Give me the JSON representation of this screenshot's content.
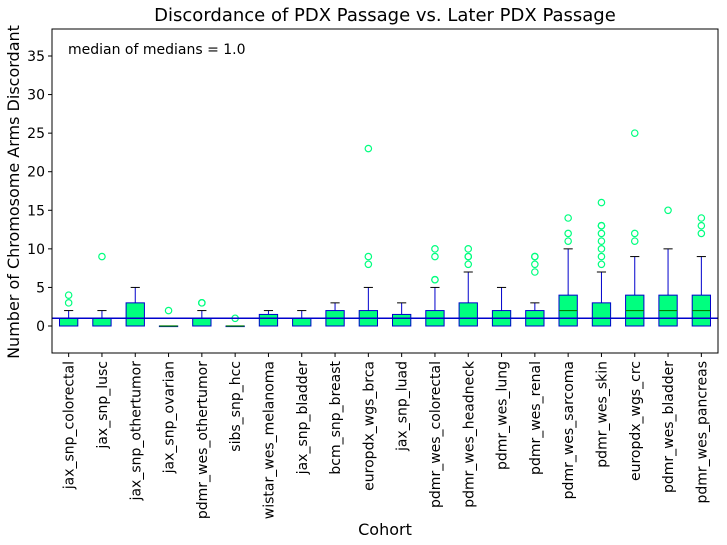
{
  "chart_data": {
    "type": "box",
    "title": "Discordance of PDX Passage vs. Later PDX Passage",
    "xlabel": "Cohort",
    "ylabel": "Number of Chromosome Arms Discordant",
    "ylim": [
      -3.5,
      38.5
    ],
    "yticks": [
      0,
      5,
      10,
      15,
      20,
      25,
      30,
      35
    ],
    "grid": false,
    "annotation": "median of medians = 1.0",
    "reference_line": 1.0,
    "colors": {
      "box_fill": "#00ff7f",
      "box_edge": "#0000cc",
      "median": "#008000",
      "whisker": "#0000cc",
      "outlier": "#00ff7f",
      "reference_line": "#0000cc"
    },
    "categories": [
      "jax_snp_colorectal",
      "jax_snp_lusc",
      "jax_snp_othertumor",
      "jax_snp_ovarian",
      "pdmr_wes_othertumor",
      "sibs_snp_hcc",
      "wistar_wes_melanoma",
      "jax_snp_bladder",
      "bcm_snp_breast",
      "europdx_wgs_brca",
      "jax_snp_luad",
      "pdmr_wes_colorectal",
      "pdmr_wes_headneck",
      "pdmr_wes_lung",
      "pdmr_wes_renal",
      "pdmr_wes_sarcoma",
      "pdmr_wes_skin",
      "europdx_wgs_crc",
      "pdmr_wes_bladder",
      "pdmr_wes_pancreas"
    ],
    "boxes": [
      {
        "whislo": 0,
        "q1": 0,
        "med": 1,
        "q3": 1,
        "whishi": 2,
        "fliers": [
          3,
          4
        ]
      },
      {
        "whislo": 0,
        "q1": 0,
        "med": 1,
        "q3": 1,
        "whishi": 2,
        "fliers": [
          9
        ]
      },
      {
        "whislo": 0,
        "q1": 0,
        "med": 1,
        "q3": 3,
        "whishi": 5,
        "fliers": []
      },
      {
        "whislo": 0,
        "q1": 0,
        "med": 0,
        "q3": 0,
        "whishi": 0,
        "fliers": [
          2
        ]
      },
      {
        "whislo": 0,
        "q1": 0,
        "med": 1,
        "q3": 1,
        "whishi": 2,
        "fliers": [
          3,
          3
        ]
      },
      {
        "whislo": 0,
        "q1": 0,
        "med": 0,
        "q3": 0,
        "whishi": 0,
        "fliers": [
          1
        ]
      },
      {
        "whislo": 0,
        "q1": 0,
        "med": 1,
        "q3": 1.5,
        "whishi": 2,
        "fliers": []
      },
      {
        "whislo": 0,
        "q1": 0,
        "med": 1,
        "q3": 1,
        "whishi": 2,
        "fliers": []
      },
      {
        "whislo": 0,
        "q1": 0,
        "med": 1,
        "q3": 2,
        "whishi": 3,
        "fliers": []
      },
      {
        "whislo": 0,
        "q1": 0,
        "med": 1,
        "q3": 2,
        "whishi": 5,
        "fliers": [
          8,
          9,
          23
        ]
      },
      {
        "whislo": 0,
        "q1": 0,
        "med": 1,
        "q3": 1.5,
        "whishi": 3,
        "fliers": []
      },
      {
        "whislo": 0,
        "q1": 0,
        "med": 1,
        "q3": 2,
        "whishi": 5,
        "fliers": [
          6,
          6,
          9,
          10
        ]
      },
      {
        "whislo": 0,
        "q1": 0,
        "med": 1,
        "q3": 3,
        "whishi": 7,
        "fliers": [
          8,
          9,
          9,
          10
        ]
      },
      {
        "whislo": 0,
        "q1": 0,
        "med": 1,
        "q3": 2,
        "whishi": 5,
        "fliers": []
      },
      {
        "whislo": 0,
        "q1": 0,
        "med": 1,
        "q3": 2,
        "whishi": 3,
        "fliers": [
          7,
          8,
          9,
          9
        ]
      },
      {
        "whislo": 0,
        "q1": 0,
        "med": 2,
        "q3": 4,
        "whishi": 10,
        "fliers": [
          11,
          12,
          14
        ]
      },
      {
        "whislo": 0,
        "q1": 0,
        "med": 1,
        "q3": 3,
        "whishi": 7,
        "fliers": [
          8,
          9,
          10,
          11,
          12,
          13,
          13,
          16
        ]
      },
      {
        "whislo": 0,
        "q1": 0,
        "med": 2,
        "q3": 4,
        "whishi": 9,
        "fliers": [
          11,
          12,
          25
        ]
      },
      {
        "whislo": 0,
        "q1": 0,
        "med": 2,
        "q3": 4,
        "whishi": 10,
        "fliers": [
          15
        ]
      },
      {
        "whislo": 0,
        "q1": 0,
        "med": 2,
        "q3": 4,
        "whishi": 9,
        "fliers": [
          12,
          13,
          14
        ]
      }
    ]
  }
}
